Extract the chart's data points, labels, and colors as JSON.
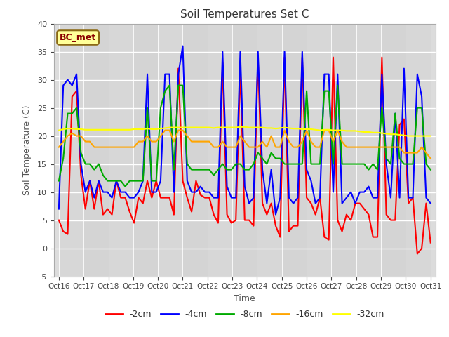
{
  "title": "Soil Temperatures Set C",
  "xlabel": "Time",
  "ylabel": "Soil Temperature (C)",
  "ylim": [
    -5,
    40
  ],
  "label_box": "BC_met",
  "xtick_labels": [
    "Oct 16",
    "Oct 17",
    "Oct 18",
    "Oct 19",
    "Oct 20",
    "Oct 21",
    "Oct 22",
    "Oct 23",
    "Oct 24",
    "Oct 25",
    "Oct 26",
    "Oct 27",
    "Oct 28",
    "Oct 29",
    "Oct 30",
    "Oct 31"
  ],
  "series": {
    "-2cm": {
      "color": "#ff0000",
      "data": [
        5,
        3,
        2.5,
        27,
        28,
        13,
        7,
        12,
        7,
        12,
        6,
        7,
        6,
        12,
        9,
        9,
        6.5,
        4.5,
        9,
        8,
        12,
        9,
        12,
        9,
        9,
        9,
        6,
        32,
        12,
        9,
        6.5,
        12,
        9.5,
        9,
        9,
        6,
        4.5,
        33,
        6,
        4.5,
        5,
        32,
        5,
        5,
        4,
        34,
        8,
        6,
        8,
        4,
        2,
        34,
        3,
        4,
        4,
        34,
        9,
        8,
        6,
        9,
        2,
        1.5,
        34,
        5,
        3,
        6,
        5,
        8,
        8,
        7,
        6,
        2,
        2,
        34,
        6,
        5,
        5,
        22,
        23,
        8,
        9,
        -1,
        0,
        8,
        1
      ]
    },
    "-4cm": {
      "color": "#0000ff",
      "data": [
        7,
        29,
        30,
        29,
        31,
        15,
        10,
        12,
        9,
        12,
        10,
        10,
        9,
        12,
        10,
        10,
        9,
        9,
        10,
        12,
        31,
        10,
        10,
        12,
        31,
        31,
        10,
        31,
        36,
        12,
        10,
        10,
        11,
        10,
        10,
        9,
        9,
        35,
        11,
        9,
        9,
        35,
        11,
        8,
        9,
        35,
        14,
        8,
        14,
        6,
        9,
        35,
        9,
        8,
        9,
        35,
        14,
        12,
        8,
        9,
        31,
        31,
        10,
        31,
        8,
        9,
        10,
        8,
        10,
        10,
        11,
        9,
        9,
        31,
        15,
        9,
        24,
        9,
        32,
        9,
        9,
        31,
        27,
        9,
        8
      ]
    },
    "-8cm": {
      "color": "#00aa00",
      "data": [
        12,
        16,
        24,
        24,
        25,
        17,
        15,
        15,
        14,
        15,
        13,
        12,
        12,
        12,
        12,
        11,
        12,
        12,
        12,
        12,
        25,
        12,
        12,
        25,
        28,
        29,
        14,
        29,
        29,
        15,
        14,
        14,
        14,
        14,
        14,
        13,
        14,
        15,
        14,
        14,
        15,
        15,
        14,
        14,
        15,
        17,
        16,
        15,
        17,
        16,
        16,
        15,
        15,
        15,
        15,
        15,
        28,
        15,
        15,
        15,
        28,
        28,
        15,
        29,
        15,
        15,
        15,
        15,
        15,
        15,
        14,
        15,
        14,
        25,
        16,
        15,
        24,
        16,
        15,
        15,
        15,
        25,
        25,
        15,
        14
      ]
    },
    "-16cm": {
      "color": "#ffa500",
      "data": [
        18,
        19,
        20,
        20.5,
        20,
        20,
        19,
        19,
        18,
        18,
        18,
        18,
        18,
        18,
        18,
        18,
        18,
        18,
        19,
        19,
        20,
        19,
        19,
        20,
        21,
        21,
        19,
        21,
        21,
        20,
        19,
        19,
        19,
        19,
        19,
        18,
        18,
        19,
        18,
        18,
        18,
        20,
        19,
        18,
        18,
        18,
        19,
        18,
        20,
        18,
        18,
        21,
        19,
        18,
        18,
        19,
        21,
        19,
        18,
        18,
        21,
        21,
        19,
        21,
        19,
        18,
        18,
        18,
        18,
        18,
        18,
        18,
        18,
        18,
        18,
        18,
        18,
        18,
        17,
        17,
        17,
        17,
        18,
        17,
        16
      ]
    },
    "-32cm": {
      "color": "#ffff00",
      "data": [
        21,
        21.2,
        21.3,
        21.3,
        21.2,
        21.2,
        21.1,
        21.1,
        21.1,
        21.1,
        21.1,
        21.1,
        21.1,
        21.1,
        21.1,
        21.1,
        21.1,
        21.2,
        21.2,
        21.2,
        21.3,
        21.2,
        21.2,
        21.3,
        21.4,
        21.5,
        21.5,
        21.5,
        21.5,
        21.5,
        21.5,
        21.5,
        21.5,
        21.5,
        21.5,
        21.4,
        21.5,
        21.5,
        21.5,
        21.5,
        21.5,
        21.6,
        21.6,
        21.5,
        21.5,
        21.5,
        21.5,
        21.4,
        21.4,
        21.3,
        21.4,
        21.5,
        21.4,
        21.3,
        21.3,
        21.2,
        21.2,
        21.2,
        21.1,
        21.0,
        21.1,
        21.1,
        21.0,
        21.0,
        21.0,
        20.9,
        20.9,
        20.9,
        20.8,
        20.7,
        20.7,
        20.6,
        20.6,
        20.5,
        20.4,
        20.3,
        20.3,
        20.2,
        20.1,
        20.0,
        20.0,
        20.0,
        20.0,
        20.0,
        20.0
      ]
    }
  }
}
